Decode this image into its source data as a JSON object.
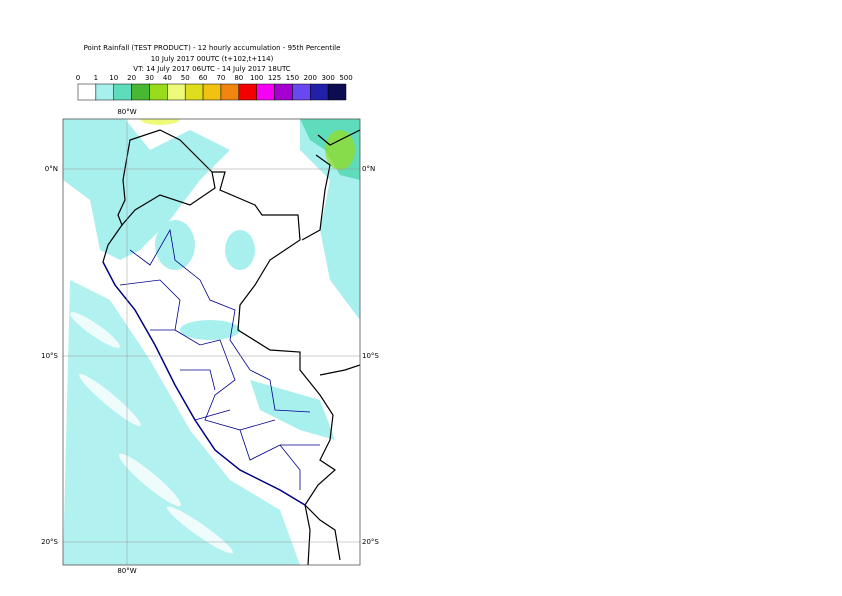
{
  "header": {
    "title": "Point Rainfall (TEST PRODUCT) - 12 hourly accumulation - 95th Percentile",
    "base_time": "10 July 2017 00UTC (t+102,t+114)",
    "valid_time": "VT: 14 July 2017 06UTC - 14 July 2017 18UTC"
  },
  "legend": {
    "thresholds": [
      0,
      1,
      10,
      20,
      30,
      40,
      50,
      60,
      70,
      80,
      100,
      125,
      150,
      200,
      300,
      500
    ],
    "colors": [
      "#ffffff",
      "#a8f0ee",
      "#5fdcbc",
      "#48b832",
      "#98dc1c",
      "#eefa7a",
      "#dede1e",
      "#f2c210",
      "#f28410",
      "#f40000",
      "#f400f4",
      "#a400d0",
      "#6a48f0",
      "#2020a8",
      "#0c0c50"
    ]
  },
  "map": {
    "lon_labels": [
      "80°W"
    ],
    "lat_labels": [
      "0°N",
      "10°S",
      "20°S"
    ]
  }
}
